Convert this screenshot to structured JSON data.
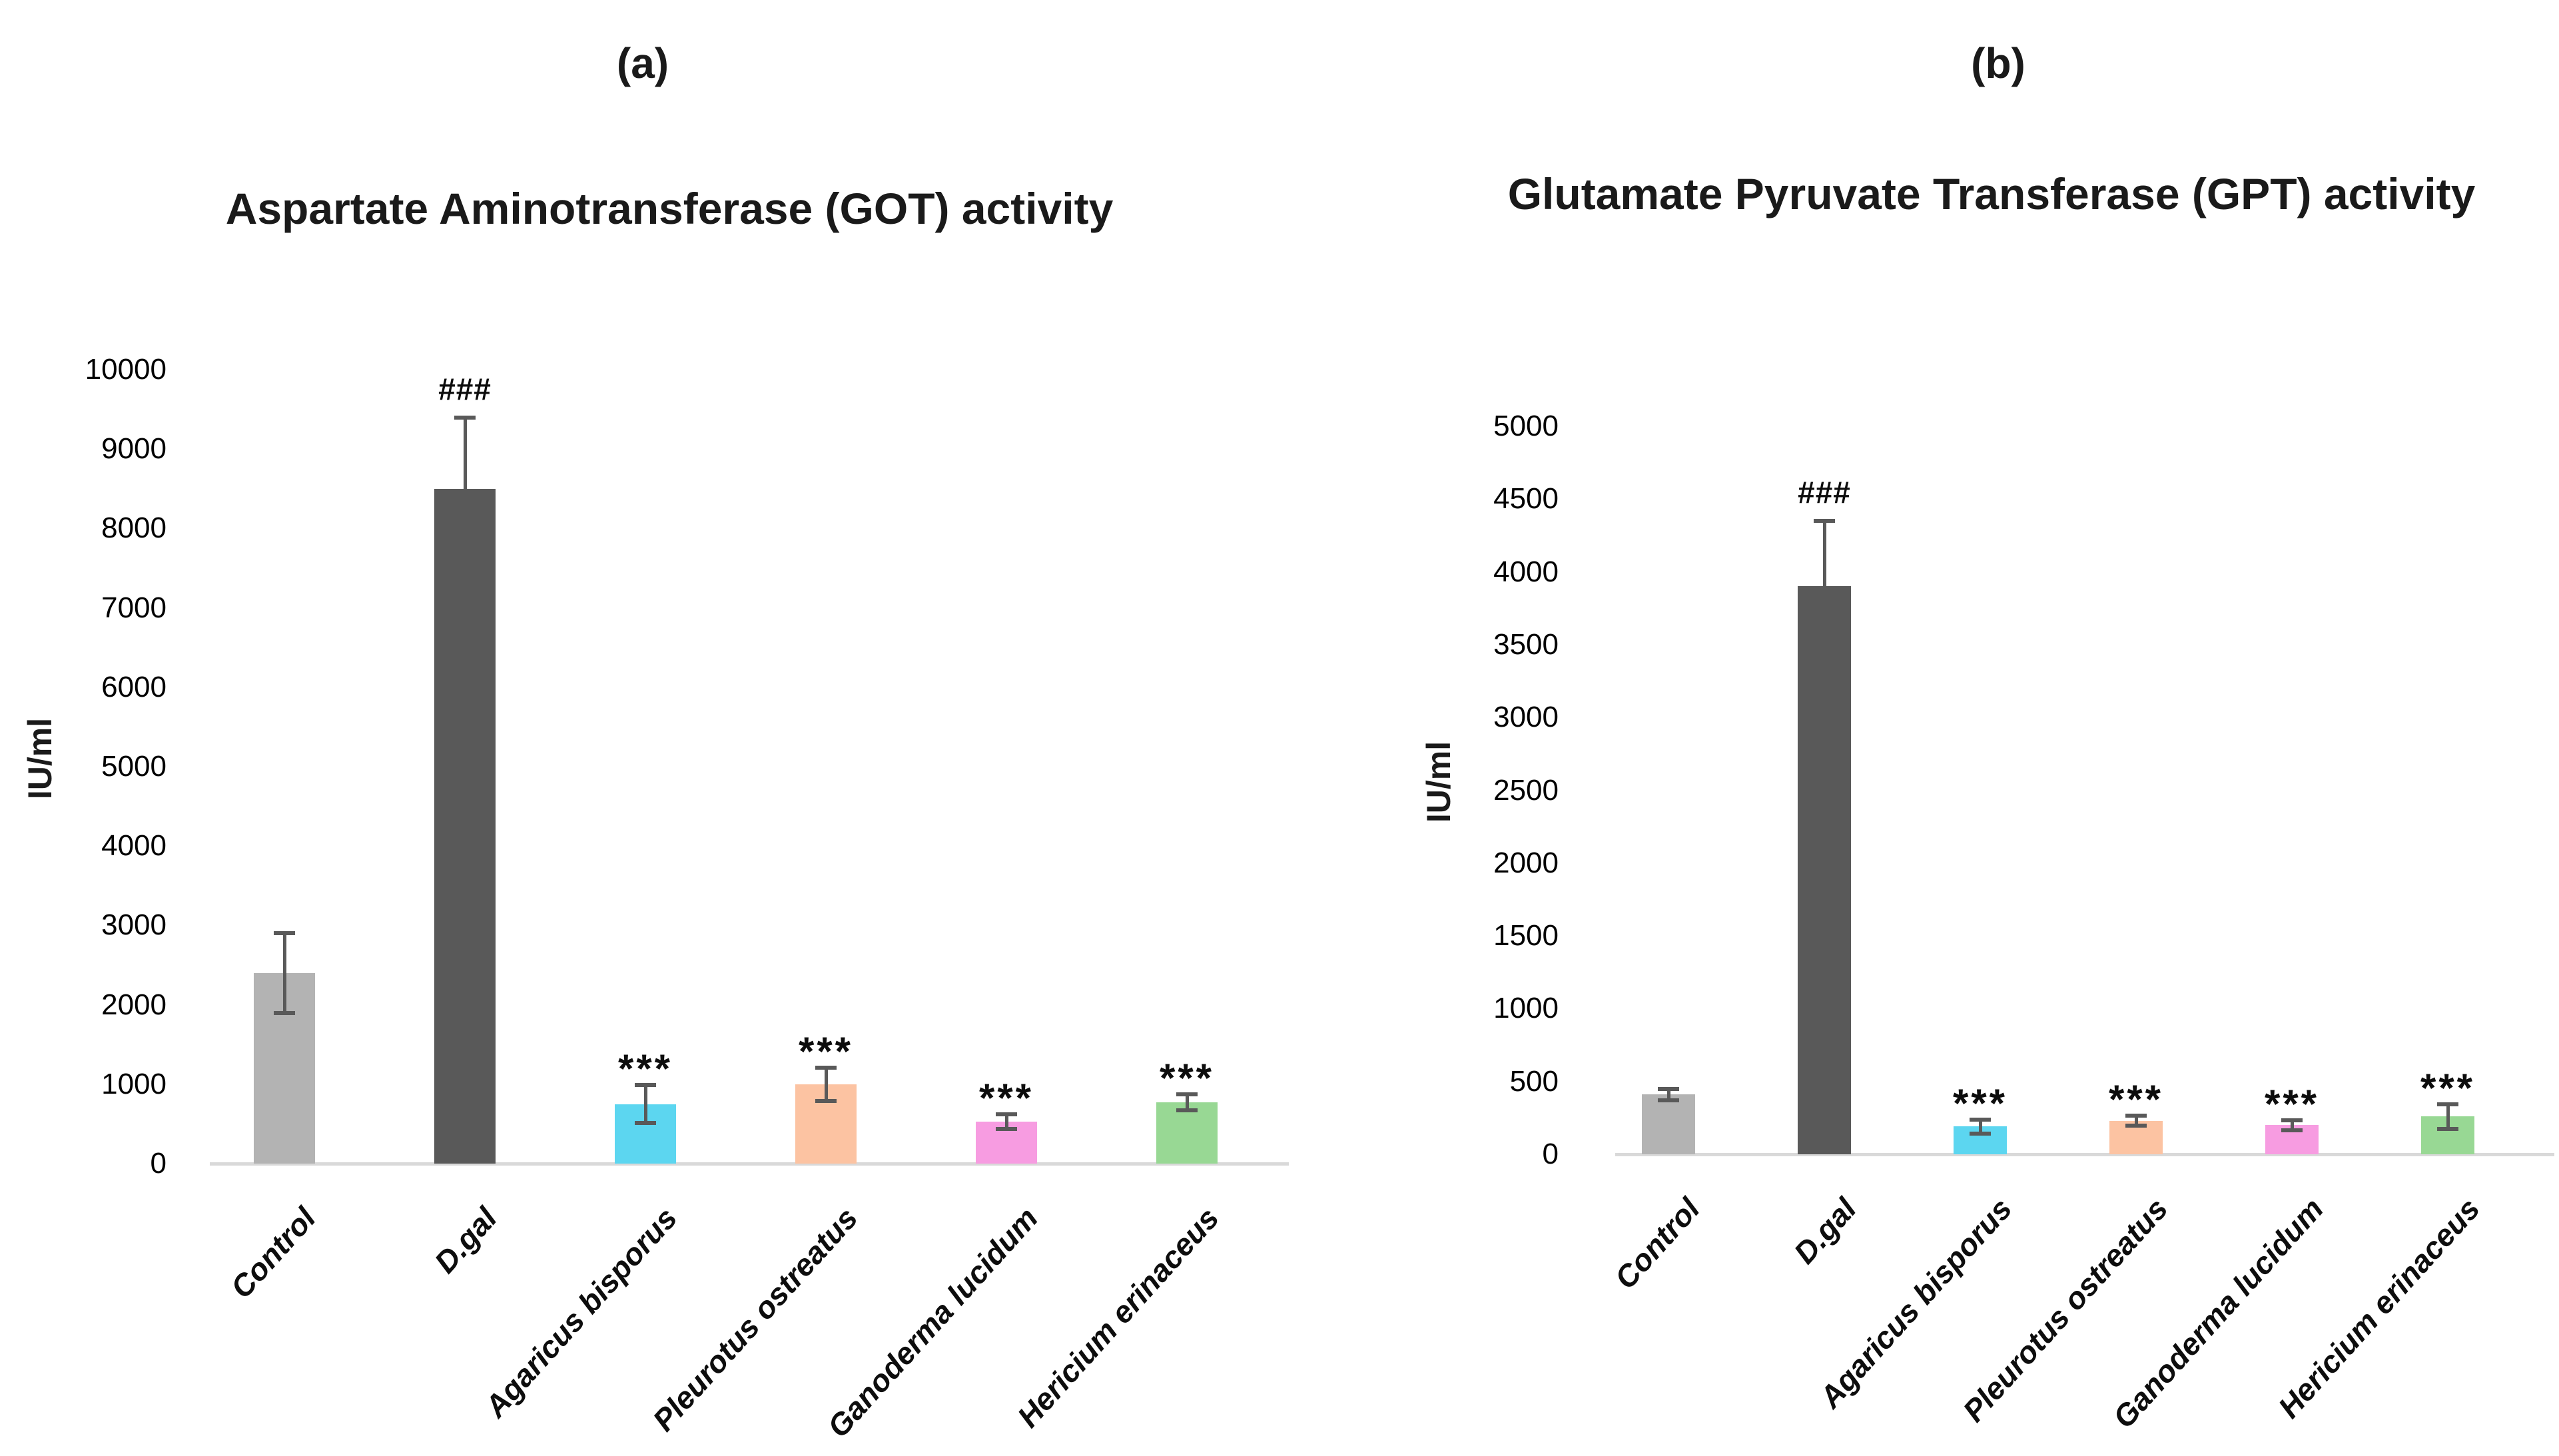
{
  "figure": {
    "panel_a_label": "(a)",
    "panel_b_label": "(b)"
  },
  "style": {
    "baseline_color": "#d9d9d9",
    "error_bar_color": "#595959",
    "text_color": "#0d0d0d"
  },
  "chart_data": [
    {
      "type": "bar",
      "panel": "(a)",
      "title": "Aspartate Aminotransferase (GOT) activity",
      "ylabel": "IU/ml",
      "ylim": [
        0,
        10000
      ],
      "ytick_step": 1000,
      "grid": false,
      "legend": null,
      "categories": [
        "Control",
        "D.gal",
        "Agaricus bisporus",
        "Pleurotus ostreatus",
        "Ganoderma lucidum",
        "Hericium erinaceus"
      ],
      "values": [
        2400,
        8500,
        750,
        1000,
        530,
        770
      ],
      "errors": [
        500,
        900,
        240,
        210,
        90,
        100
      ],
      "annotations": [
        "",
        "###",
        "***",
        "***",
        "***",
        "***"
      ],
      "bar_colors": [
        "#b3b3b3",
        "#595959",
        "#5cd6f0",
        "#fcc3a2",
        "#f79ce1",
        "#98d894"
      ]
    },
    {
      "type": "bar",
      "panel": "(b)",
      "title": "Glutamate Pyruvate Transferase (GPT) activity",
      "ylabel": "IU/ml",
      "ylim": [
        0,
        5000
      ],
      "ytick_step": 500,
      "grid": false,
      "legend": null,
      "categories": [
        "Control",
        "D.gal",
        "Agaricus bisporus",
        "Pleurotus ostreatus",
        "Ganoderma lucidum",
        "Hericium erinaceus"
      ],
      "values": [
        410,
        3900,
        190,
        230,
        200,
        260
      ],
      "errors": [
        40,
        450,
        50,
        35,
        35,
        85
      ],
      "annotations": [
        "",
        "###",
        "***",
        "***",
        "***",
        "***"
      ],
      "bar_colors": [
        "#b3b3b3",
        "#595959",
        "#5cd6f0",
        "#fcc3a2",
        "#f79ce1",
        "#98d894"
      ]
    }
  ]
}
